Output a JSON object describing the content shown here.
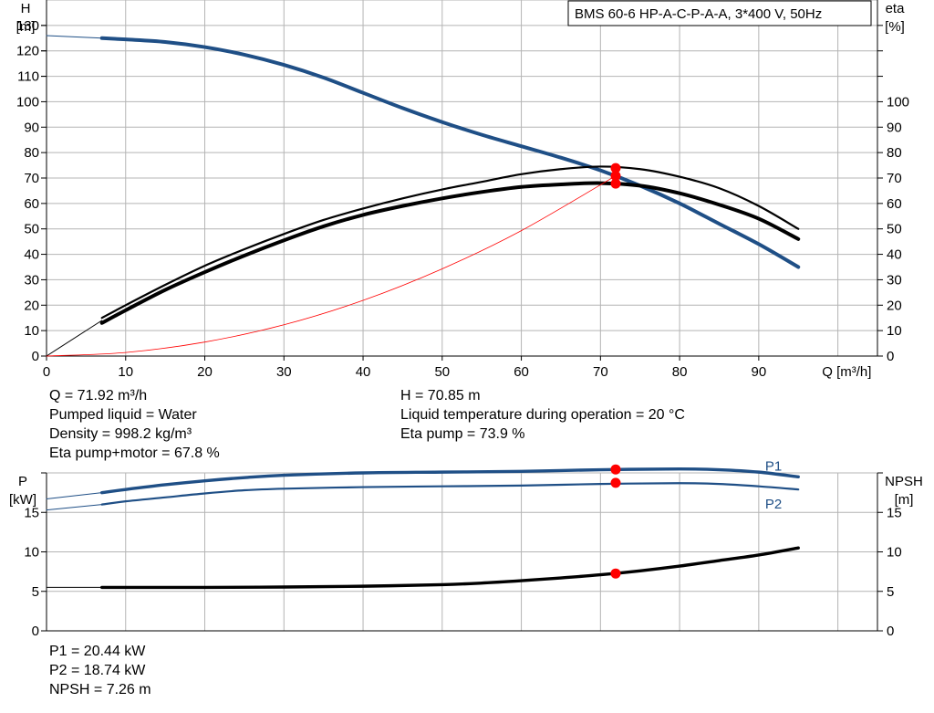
{
  "header": {
    "model_label": "BMS 60-6 HP-A-C-P-A-A, 3*400 V, 50Hz"
  },
  "colors": {
    "blue": "#1f4f86",
    "red": "#ff0000",
    "black": "#000000",
    "grid": "#b4b4b4"
  },
  "chart_data": [
    {
      "type": "line",
      "title": "",
      "xlabel": "Q [m³/h]",
      "ylabel_left": {
        "symbol": "H",
        "unit": "[m]"
      },
      "ylabel_right": {
        "symbol": "eta",
        "unit": "[%]"
      },
      "xlim": [
        0,
        105
      ],
      "xticks": [
        0,
        10,
        20,
        30,
        40,
        50,
        60,
        70,
        80,
        90
      ],
      "ylim_left": [
        0,
        140
      ],
      "ylim_right": [
        0,
        140
      ],
      "yticks_left": [
        0,
        10,
        20,
        30,
        40,
        50,
        60,
        70,
        80,
        90,
        100,
        110,
        120,
        130
      ],
      "yticks_right": [
        0,
        10,
        20,
        30,
        40,
        50,
        60,
        70,
        80,
        90,
        100
      ],
      "grid": true,
      "series": [
        {
          "axis": "left",
          "color": "#1f4f86",
          "x": [
            7,
            10,
            15,
            20,
            25,
            30,
            35,
            40,
            45,
            50,
            55,
            60,
            65,
            70,
            75,
            80,
            85,
            90,
            95
          ],
          "y": [
            125,
            124.5,
            123.5,
            121.5,
            118.5,
            114.5,
            109.5,
            103.5,
            97.5,
            92,
            87,
            82.5,
            78,
            73,
            67,
            60,
            52,
            44,
            35
          ]
        },
        {
          "axis": "left",
          "color": "#1f4f86",
          "x": [
            0,
            7
          ],
          "y": [
            126,
            125
          ]
        },
        {
          "axis": "right",
          "color": "#000000",
          "x": [
            7,
            10,
            15,
            20,
            25,
            30,
            35,
            40,
            45,
            50,
            55,
            60,
            65,
            70,
            75,
            80,
            85,
            90,
            95
          ],
          "y": [
            15,
            20,
            28,
            35.5,
            42,
            48,
            53.5,
            58,
            62,
            65.5,
            68.5,
            71.5,
            73.5,
            74.5,
            73.5,
            70.5,
            66,
            59,
            50
          ]
        },
        {
          "axis": "right",
          "color": "#000000",
          "x": [
            7,
            10,
            15,
            20,
            25,
            30,
            35,
            40,
            45,
            50,
            55,
            60,
            65,
            70,
            75,
            80,
            85,
            90,
            95
          ],
          "y": [
            13,
            18,
            26,
            33,
            39.5,
            45.5,
            51,
            55.5,
            59,
            62,
            64.5,
            66.5,
            67.5,
            68,
            67,
            64,
            59.5,
            54,
            46
          ]
        },
        {
          "axis": "right",
          "color": "#000000",
          "x": [
            0,
            7
          ],
          "y": [
            0,
            14
          ]
        },
        {
          "axis": "left",
          "color": "#ff0000",
          "x": [
            0,
            10,
            20,
            30,
            40,
            50,
            60,
            71.92
          ],
          "y": [
            0,
            1.4,
            5.5,
            12.3,
            21.9,
            34.3,
            49.3,
            70.85
          ]
        }
      ],
      "markers": [
        {
          "axis": "left",
          "x": 71.92,
          "y": 70.85,
          "label": "H"
        },
        {
          "axis": "right",
          "x": 71.92,
          "y": 73.9,
          "label": "Eta pump"
        },
        {
          "axis": "right",
          "x": 71.92,
          "y": 67.8,
          "label": "Eta pump+motor"
        }
      ]
    },
    {
      "type": "line",
      "title": "",
      "xlabel": "",
      "ylabel_left": {
        "symbol": "P",
        "unit": "[kW]"
      },
      "ylabel_right": {
        "symbol": "NPSH",
        "unit": "[m]"
      },
      "xlim": [
        0,
        105
      ],
      "xticks": [
        0,
        10,
        20,
        30,
        40,
        50,
        60,
        70,
        80,
        90
      ],
      "ylim_left": [
        0,
        20
      ],
      "ylim_right": [
        0,
        20
      ],
      "yticks_left": [
        0,
        5,
        10,
        15
      ],
      "yticks_right": [
        0,
        5,
        10,
        15
      ],
      "grid": true,
      "series": [
        {
          "name": "P1",
          "axis": "left",
          "color": "#1f4f86",
          "x": [
            7,
            10,
            15,
            20,
            25,
            30,
            40,
            50,
            60,
            70,
            80,
            85,
            90,
            95
          ],
          "y": [
            17.5,
            17.9,
            18.5,
            19,
            19.4,
            19.7,
            20,
            20.1,
            20.2,
            20.4,
            20.5,
            20.4,
            20.1,
            19.5
          ]
        },
        {
          "name": "P2",
          "axis": "left",
          "color": "#1f4f86",
          "x": [
            7,
            10,
            15,
            20,
            25,
            30,
            40,
            50,
            60,
            70,
            80,
            85,
            90,
            95
          ],
          "y": [
            16,
            16.4,
            16.9,
            17.4,
            17.8,
            18,
            18.2,
            18.3,
            18.4,
            18.6,
            18.7,
            18.6,
            18.3,
            17.9
          ]
        },
        {
          "axis": "left",
          "color": "#1f4f86",
          "x": [
            0,
            7
          ],
          "y": [
            16.7,
            17.5
          ]
        },
        {
          "axis": "left",
          "color": "#1f4f86",
          "x": [
            0,
            7
          ],
          "y": [
            15.3,
            16
          ]
        },
        {
          "axis": "right",
          "color": "#000000",
          "x": [
            7,
            20,
            30,
            40,
            50,
            55,
            60,
            65,
            70,
            75,
            80,
            85,
            90,
            95
          ],
          "y": [
            5.5,
            5.5,
            5.55,
            5.65,
            5.85,
            6.05,
            6.35,
            6.7,
            7.1,
            7.6,
            8.2,
            8.9,
            9.6,
            10.5
          ]
        },
        {
          "axis": "right",
          "color": "#000000",
          "x": [
            0,
            7
          ],
          "y": [
            5.5,
            5.5
          ]
        }
      ],
      "markers": [
        {
          "axis": "left",
          "x": 71.92,
          "y": 20.44,
          "label": "P1"
        },
        {
          "axis": "left",
          "x": 71.92,
          "y": 18.74,
          "label": "P2"
        },
        {
          "axis": "right",
          "x": 71.92,
          "y": 7.26,
          "label": "NPSH"
        }
      ]
    }
  ],
  "results_top": {
    "q": "Q = 71.92 m³/h",
    "liquid": "Pumped liquid = Water",
    "density": "Density = 998.2 kg/m³",
    "eta_pm": "Eta pump+motor = 67.8 %",
    "h": "H = 70.85 m",
    "temp": "Liquid temperature during operation = 20 °C",
    "eta_p": "Eta pump = 73.9 %"
  },
  "results_bottom": {
    "p1": "P1 = 20.44 kW",
    "p2": "P2 = 18.74 kW",
    "npsh": "NPSH = 7.26 m"
  }
}
